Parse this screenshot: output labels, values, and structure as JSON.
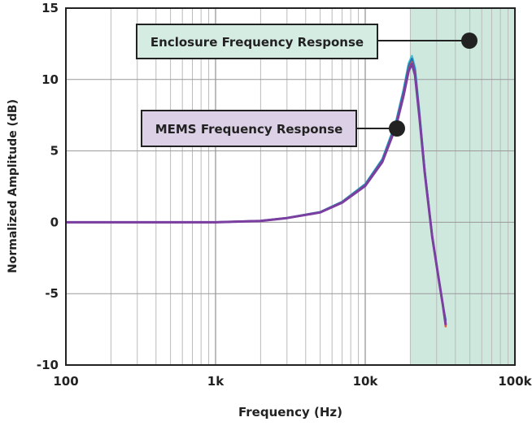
{
  "chart_data": {
    "type": "line",
    "xlabel": "Frequency (Hz)",
    "ylabel": "Normalized Amplitude (dB)",
    "xscale": "log",
    "xlim": [
      100,
      100000
    ],
    "ylim": [
      -10,
      15
    ],
    "x_tick_labels": [
      "100",
      "1k",
      "10k",
      "100k"
    ],
    "x_ticks": [
      100,
      1000,
      10000,
      100000
    ],
    "y_ticks": [
      -10,
      -5,
      0,
      5,
      10,
      15
    ],
    "y_tick_labels": [
      "-10",
      "-5",
      "0",
      "5",
      "10",
      "15"
    ],
    "grid": true,
    "shaded_region": {
      "x": [
        20000,
        100000
      ],
      "color": "#cfe8de"
    },
    "series_colors": [
      "#40c0d0",
      "#2a6db5",
      "#e05a3a",
      "#7a3fa0"
    ],
    "x": [
      100,
      200,
      500,
      1000,
      2000,
      3000,
      5000,
      7000,
      10000,
      13000,
      16000,
      18000,
      19500,
      20500,
      21500,
      23000,
      25000,
      28000,
      31000,
      33000,
      34500
    ],
    "y": [
      0,
      0,
      0,
      0,
      0.1,
      0.3,
      0.7,
      1.4,
      2.6,
      4.3,
      6.8,
      9.0,
      10.8,
      11.3,
      10.5,
      7.5,
      3.5,
      -1.0,
      -4.0,
      -5.8,
      -7.2
    ],
    "annotations": [
      {
        "text": "Enclosure Frequency Response",
        "color": "#d5ece2"
      },
      {
        "text": "MEMS Frequency Response",
        "color": "#dcd0e6"
      }
    ]
  }
}
